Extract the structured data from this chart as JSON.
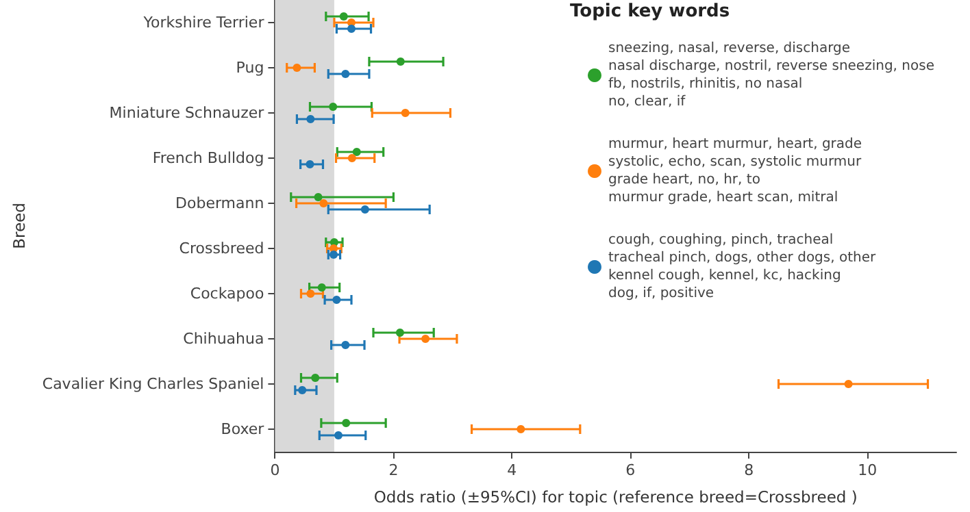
{
  "chart_data": {
    "type": "scatter",
    "orientation": "horizontal",
    "xlabel": "Odds ratio (±95%CI) for topic (reference breed=Crossbreed )",
    "ylabel": "Breed",
    "legend_title": "Topic key words",
    "categories": [
      "Yorkshire Terrier",
      "Pug",
      "Miniature Schnauzer",
      "French Bulldog",
      "Dobermann",
      "Crossbreed",
      "Cockapoo",
      "Chihuahua",
      "Cavalier King Charles Spaniel",
      "Boxer"
    ],
    "xlim": [
      0,
      11.5
    ],
    "xticks": [
      0,
      2,
      4,
      6,
      8,
      10
    ],
    "series": [
      {
        "name": "sneezing, nasal, reverse, discharge\nnasal discharge, nostril, reverse sneezing, nose\nfb, nostrils, rhinitis, no nasal\nno, clear, if",
        "color": "#2ca02c",
        "values": [
          1.16,
          2.12,
          0.98,
          1.38,
          0.73,
          1.0,
          0.79,
          2.11,
          0.68,
          1.2
        ],
        "errors": [
          [
            0.86,
            1.58
          ],
          [
            1.59,
            2.84
          ],
          [
            0.59,
            1.63
          ],
          [
            1.05,
            1.83
          ],
          [
            0.27,
            2.0
          ],
          [
            0.86,
            1.14
          ],
          [
            0.58,
            1.09
          ],
          [
            1.66,
            2.68
          ],
          [
            0.44,
            1.05
          ],
          [
            0.78,
            1.87
          ]
        ]
      },
      {
        "name": "murmur, heart murmur, heart, grade\nsystolic, echo, scan, systolic murmur\ngrade heart, no, hr, to\nmurmur grade, heart scan, mitral",
        "color": "#ff7f0e",
        "values": [
          1.29,
          0.37,
          2.2,
          1.3,
          0.82,
          0.99,
          0.6,
          2.54,
          9.68,
          4.15
        ],
        "errors": [
          [
            1.0,
            1.66
          ],
          [
            0.2,
            0.67
          ],
          [
            1.64,
            2.96
          ],
          [
            1.03,
            1.68
          ],
          [
            0.36,
            1.87
          ],
          [
            0.88,
            1.12
          ],
          [
            0.44,
            0.81
          ],
          [
            2.1,
            3.07
          ],
          [
            8.5,
            11.02
          ],
          [
            3.32,
            5.15
          ]
        ]
      },
      {
        "name": "cough, coughing, pinch, tracheal\ntracheal pinch, dogs, other dogs, other\nkennel cough, kennel, kc, hacking\ndog, if, positive",
        "color": "#1f77b4",
        "values": [
          1.29,
          1.19,
          0.6,
          0.59,
          1.52,
          0.99,
          1.04,
          1.19,
          0.46,
          1.07
        ],
        "errors": [
          [
            1.04,
            1.62
          ],
          [
            0.9,
            1.59
          ],
          [
            0.37,
            0.99
          ],
          [
            0.43,
            0.81
          ],
          [
            0.9,
            2.61
          ],
          [
            0.9,
            1.1
          ],
          [
            0.84,
            1.29
          ],
          [
            0.95,
            1.51
          ],
          [
            0.34,
            0.7
          ],
          [
            0.75,
            1.53
          ]
        ]
      }
    ],
    "bands": [
      {
        "axis": "x",
        "from": 0,
        "to": 1,
        "color": "#d9d9d9"
      }
    ],
    "legend": "top right",
    "marker": "circle",
    "grid": false
  }
}
